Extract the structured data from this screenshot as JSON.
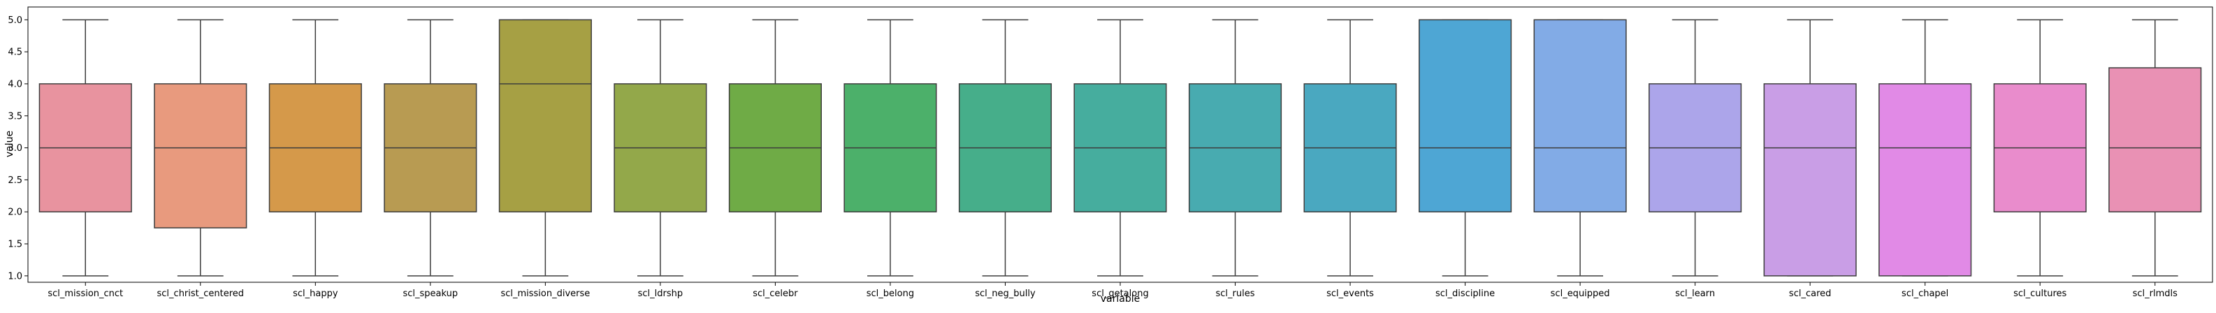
{
  "chart_data": {
    "type": "box",
    "title": "",
    "xlabel": "variable",
    "ylabel": "value",
    "ylim": [
      0.9,
      5.2
    ],
    "yticks": [
      1.0,
      1.5,
      2.0,
      2.5,
      3.0,
      3.5,
      4.0,
      4.5,
      5.0
    ],
    "ytick_labels": [
      "1.0",
      "1.5",
      "2.0",
      "2.5",
      "3.0",
      "3.5",
      "4.0",
      "4.5",
      "5.0"
    ],
    "grid": false,
    "legend": "none",
    "categories": [
      "scl_mission_cnct",
      "scl_christ_centered",
      "scl_happy",
      "scl_speakup",
      "scl_mission_diverse",
      "scl_ldrshp",
      "scl_celebr",
      "scl_belong",
      "scl_neg_bully",
      "scl_getalong",
      "scl_rules",
      "scl_events",
      "scl_discipline",
      "scl_equipped",
      "scl_learn",
      "scl_cared",
      "scl_chapel",
      "scl_cultures",
      "scl_rlmdls"
    ],
    "boxes": [
      {
        "whisker_low": 1,
        "q1": 2,
        "median": 3,
        "q3": 4,
        "whisker_high": 5,
        "color": "#e8939f"
      },
      {
        "whisker_low": 1,
        "q1": 1.75,
        "median": 3,
        "q3": 4,
        "whisker_high": 5,
        "color": "#e89a7e"
      },
      {
        "whisker_low": 1,
        "q1": 2,
        "median": 3,
        "q3": 4,
        "whisker_high": 5,
        "color": "#d5994a"
      },
      {
        "whisker_low": 1,
        "q1": 2,
        "median": 3,
        "q3": 4,
        "whisker_high": 5,
        "color": "#b89b52"
      },
      {
        "whisker_low": 1,
        "q1": 2,
        "median": 4,
        "q3": 5,
        "whisker_high": 5,
        "color": "#a6a044"
      },
      {
        "whisker_low": 1,
        "q1": 2,
        "median": 3,
        "q3": 4,
        "whisker_high": 5,
        "color": "#93a84a"
      },
      {
        "whisker_low": 1,
        "q1": 2,
        "median": 3,
        "q3": 4,
        "whisker_high": 5,
        "color": "#6fab46"
      },
      {
        "whisker_low": 1,
        "q1": 2,
        "median": 3,
        "q3": 4,
        "whisker_high": 5,
        "color": "#4cb06a"
      },
      {
        "whisker_low": 1,
        "q1": 2,
        "median": 3,
        "q3": 4,
        "whisker_high": 5,
        "color": "#46ae8a"
      },
      {
        "whisker_low": 1,
        "q1": 2,
        "median": 3,
        "q3": 4,
        "whisker_high": 5,
        "color": "#46ad9e"
      },
      {
        "whisker_low": 1,
        "q1": 2,
        "median": 3,
        "q3": 4,
        "whisker_high": 5,
        "color": "#48abb0"
      },
      {
        "whisker_low": 1,
        "q1": 2,
        "median": 3,
        "q3": 4,
        "whisker_high": 5,
        "color": "#4aa8c0"
      },
      {
        "whisker_low": 1,
        "q1": 2,
        "median": 3,
        "q3": 5,
        "whisker_high": 5,
        "color": "#4ea6d4"
      },
      {
        "whisker_low": 1,
        "q1": 2,
        "median": 3,
        "q3": 5,
        "whisker_high": 5,
        "color": "#82abe6"
      },
      {
        "whisker_low": 1,
        "q1": 2,
        "median": 3,
        "q3": 4,
        "whisker_high": 5,
        "color": "#aca5ea"
      },
      {
        "whisker_low": 1,
        "q1": 1,
        "median": 3,
        "q3": 4,
        "whisker_high": 5,
        "color": "#c99ee6"
      },
      {
        "whisker_low": 1,
        "q1": 1,
        "median": 3,
        "q3": 4,
        "whisker_high": 5,
        "color": "#e18ae6"
      },
      {
        "whisker_low": 1,
        "q1": 2,
        "median": 3,
        "q3": 4,
        "whisker_high": 5,
        "color": "#e98ccc"
      },
      {
        "whisker_low": 1,
        "q1": 2,
        "median": 3,
        "q3": 4.25,
        "whisker_high": 5,
        "color": "#e991b4"
      }
    ]
  }
}
